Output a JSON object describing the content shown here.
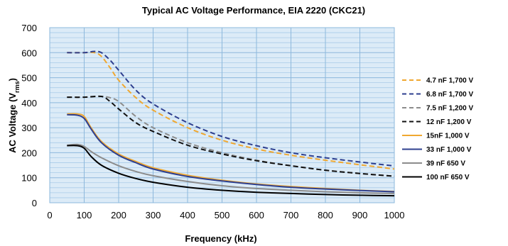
{
  "chart_data": {
    "type": "line",
    "title": "Typical AC Voltage Performance, EIA 2220 (CKC21)",
    "xlabel": "Frequency (kHz)",
    "ylabel": {
      "main": "AC Voltage (V",
      "sub": "rms",
      "close": ")"
    },
    "xlim": [
      0,
      1000
    ],
    "ylim": [
      0,
      700
    ],
    "xticks": [
      0,
      100,
      200,
      300,
      400,
      500,
      600,
      700,
      800,
      900,
      1000
    ],
    "yticks": [
      0,
      100,
      200,
      300,
      400,
      500,
      600,
      700
    ],
    "grid": true,
    "legend_position": "right",
    "series": [
      {
        "name": "4.7 nF 1,700 V",
        "color": "#f0a830",
        "dash": true,
        "x": [
          50,
          100,
          130,
          150,
          175,
          200,
          250,
          300,
          400,
          500,
          600,
          700,
          800,
          900,
          1000
        ],
        "y": [
          600,
          600,
          600,
          585,
          540,
          490,
          420,
          370,
          300,
          250,
          215,
          190,
          170,
          152,
          135
        ]
      },
      {
        "name": "6.8 nF 1,700 V",
        "color": "#2e3f8f",
        "dash": true,
        "x": [
          50,
          100,
          130,
          150,
          175,
          200,
          250,
          300,
          400,
          500,
          600,
          700,
          800,
          900,
          1000
        ],
        "y": [
          600,
          600,
          605,
          600,
          570,
          530,
          450,
          395,
          320,
          265,
          228,
          200,
          180,
          163,
          147
        ]
      },
      {
        "name": "7.5 nF 1,200 V",
        "color": "#8c8c8c",
        "dash": true,
        "x": [
          50,
          100,
          150,
          175,
          200,
          250,
          300,
          400,
          500,
          600,
          700,
          800,
          900,
          1000
        ],
        "y": [
          422,
          422,
          425,
          420,
          405,
          345,
          300,
          240,
          200,
          170,
          148,
          130,
          117,
          106
        ]
      },
      {
        "name": "12 nF 1,200 V",
        "color": "#111111",
        "dash": true,
        "x": [
          50,
          100,
          150,
          175,
          200,
          250,
          300,
          400,
          500,
          600,
          700,
          800,
          900,
          1000
        ],
        "y": [
          422,
          422,
          425,
          405,
          375,
          320,
          285,
          230,
          195,
          168,
          148,
          130,
          117,
          106
        ]
      },
      {
        "name": "15nF 1,000 V",
        "color": "#f0a830",
        "dash": false,
        "x": [
          50,
          80,
          100,
          120,
          150,
          200,
          250,
          300,
          400,
          500,
          600,
          700,
          800,
          900,
          1000
        ],
        "y": [
          355,
          355,
          345,
          300,
          245,
          195,
          165,
          140,
          110,
          90,
          75,
          65,
          57,
          50,
          45
        ]
      },
      {
        "name": "33 nF 1,000 V",
        "color": "#2e3f8f",
        "dash": false,
        "x": [
          50,
          80,
          100,
          120,
          150,
          200,
          250,
          300,
          400,
          500,
          600,
          700,
          800,
          900,
          1000
        ],
        "y": [
          352,
          350,
          337,
          295,
          240,
          190,
          160,
          135,
          105,
          87,
          73,
          62,
          55,
          49,
          44
        ]
      },
      {
        "name": "39 nF 650 V",
        "color": "#8c8c8c",
        "dash": false,
        "x": [
          50,
          80,
          100,
          120,
          150,
          200,
          250,
          300,
          400,
          500,
          600,
          700,
          800,
          900,
          1000
        ],
        "y": [
          230,
          233,
          225,
          205,
          180,
          148,
          125,
          108,
          85,
          68,
          57,
          50,
          44,
          40,
          37
        ]
      },
      {
        "name": "100 nF 650 V",
        "color": "#000000",
        "dash": false,
        "x": [
          50,
          80,
          100,
          120,
          150,
          200,
          250,
          300,
          400,
          500,
          600,
          700,
          800,
          900,
          1000
        ],
        "y": [
          228,
          228,
          218,
          185,
          150,
          118,
          97,
          82,
          62,
          50,
          42,
          37,
          33,
          30,
          28
        ]
      }
    ]
  }
}
